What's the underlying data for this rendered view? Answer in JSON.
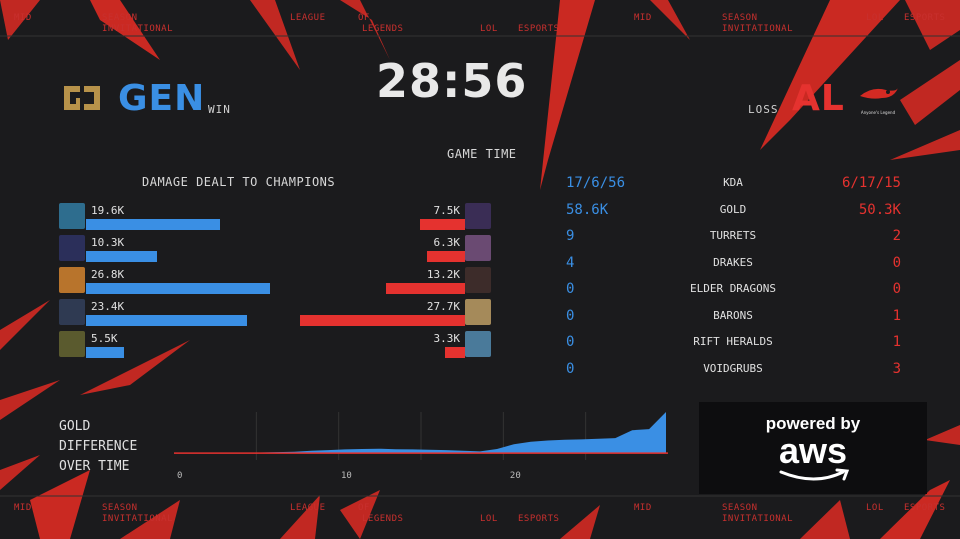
{
  "ticker_top": [
    {
      "text": "MID"
    },
    {
      "text": "SEASON"
    },
    {
      "text": "INVITATIONAL"
    },
    {
      "text": "LEAGUE"
    },
    {
      "text": "OF"
    },
    {
      "text": "LEGENDS"
    },
    {
      "text": "LOL"
    },
    {
      "text": "ESPORTS"
    },
    {
      "text": "MID"
    },
    {
      "text": "SEASON"
    },
    {
      "text": "INVITATIONAL"
    },
    {
      "text": "LOL"
    },
    {
      "text": "ESPORTS"
    }
  ],
  "ticker_bottom": [
    {
      "text": "MID"
    },
    {
      "text": "SEASON"
    },
    {
      "text": "INVITATIONAL"
    },
    {
      "text": "LEAGUE"
    },
    {
      "text": "OF"
    },
    {
      "text": "LEGENDS"
    },
    {
      "text": "LOL"
    },
    {
      "text": "ESPORTS"
    },
    {
      "text": "MID"
    },
    {
      "text": "SEASON"
    },
    {
      "text": "INVITATIONAL"
    },
    {
      "text": "LOL"
    },
    {
      "text": "ESPORTS"
    }
  ],
  "header": {
    "timer": "28:56",
    "timer_label": "GAME TIME",
    "team_left": {
      "name": "GEN",
      "result": "WIN",
      "color": "#3a8fe4",
      "logo_icon": "gen-g-logo-icon"
    },
    "team_right": {
      "name": "AL",
      "result": "LOSS",
      "color": "#e5322f",
      "logo_icon": "anyones-legend-logo-icon",
      "logo_text": "Anyone's Legend"
    }
  },
  "damage": {
    "title": "DAMAGE DEALT TO CHAMPIONS",
    "max_value": 27.7,
    "left": [
      {
        "label": "19.6K",
        "value": 19.6,
        "portrait": "#2e6d8e"
      },
      {
        "label": "10.3K",
        "value": 10.3,
        "portrait": "#2b2f5a"
      },
      {
        "label": "26.8K",
        "value": 26.8,
        "portrait": "#b8742c"
      },
      {
        "label": "23.4K",
        "value": 23.4,
        "portrait": "#2f3a52"
      },
      {
        "label": "5.5K",
        "value": 5.5,
        "portrait": "#5a5a2e"
      }
    ],
    "right": [
      {
        "label": "7.5K",
        "value": 7.5,
        "portrait": "#3a2d55"
      },
      {
        "label": "6.3K",
        "value": 6.3,
        "portrait": "#6a4a72"
      },
      {
        "label": "13.2K",
        "value": 13.2,
        "portrait": "#3d2c2a"
      },
      {
        "label": "27.7K",
        "value": 27.7,
        "portrait": "#a58a5a"
      },
      {
        "label": "3.3K",
        "value": 3.3,
        "portrait": "#4a7a9a"
      }
    ],
    "bar_color_left": "#3a8fe4",
    "bar_color_right": "#e5322f"
  },
  "stats": [
    {
      "name": "KDA",
      "left": "17/6/56",
      "right": "6/17/15"
    },
    {
      "name": "GOLD",
      "left": "58.6K",
      "right": "50.3K"
    },
    {
      "name": "TURRETS",
      "left": "9",
      "right": "2"
    },
    {
      "name": "DRAKES",
      "left": "4",
      "right": "0"
    },
    {
      "name": "ELDER DRAGONS",
      "left": "0",
      "right": "0"
    },
    {
      "name": "BARONS",
      "left": "0",
      "right": "1"
    },
    {
      "name": "RIFT HERALDS",
      "left": "0",
      "right": "1"
    },
    {
      "name": "VOIDGRUBS",
      "left": "0",
      "right": "3"
    }
  ],
  "gold_chart": {
    "title_lines": [
      "GOLD",
      "DIFFERENCE",
      "OVER TIME"
    ],
    "chart_data": {
      "type": "area",
      "x": [
        0,
        1,
        2,
        3,
        4,
        5,
        6,
        7,
        8,
        9,
        10,
        11,
        12,
        13,
        14,
        15,
        16,
        17,
        18,
        19,
        20,
        21,
        22,
        23,
        24,
        25,
        26,
        27,
        28,
        29
      ],
      "y": [
        0,
        100,
        50,
        150,
        120,
        200,
        300,
        400,
        700,
        900,
        1100,
        1200,
        1300,
        1150,
        1100,
        1000,
        900,
        700,
        500,
        1200,
        2600,
        3300,
        3700,
        3900,
        4000,
        4200,
        4400,
        6700,
        7000,
        12000
      ],
      "x_ticks": [
        "0",
        "10",
        "20"
      ],
      "x_tick_values": [
        0,
        10,
        20
      ],
      "xlim": [
        0,
        29
      ],
      "ylim": [
        -2000,
        12000
      ],
      "fill_color": "#3a8fe4",
      "negative_color": "#e5322f",
      "grid": true
    }
  },
  "sponsor": {
    "line1": "powered by",
    "line2": "aws"
  }
}
